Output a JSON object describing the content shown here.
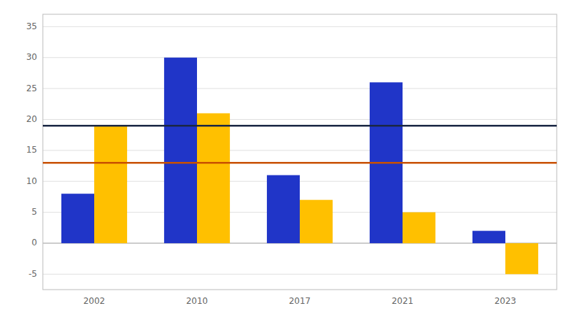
{
  "chart_data": {
    "type": "bar",
    "categories": [
      "2002",
      "2010",
      "2017",
      "2021",
      "2023"
    ],
    "series": [
      {
        "color": "#2035C8",
        "values": [
          8,
          30,
          11,
          26,
          2
        ]
      },
      {
        "color": "#FFC000",
        "values": [
          19,
          21,
          7,
          5,
          -5
        ]
      }
    ],
    "reference_lines": [
      {
        "value": 19,
        "color": "#1a2744"
      },
      {
        "value": 13,
        "color": "#C85000"
      }
    ],
    "ylim": [
      -7.5,
      37
    ],
    "yticks": [
      -5,
      0,
      5,
      10,
      15,
      20,
      25,
      30,
      35
    ],
    "grid": true
  }
}
